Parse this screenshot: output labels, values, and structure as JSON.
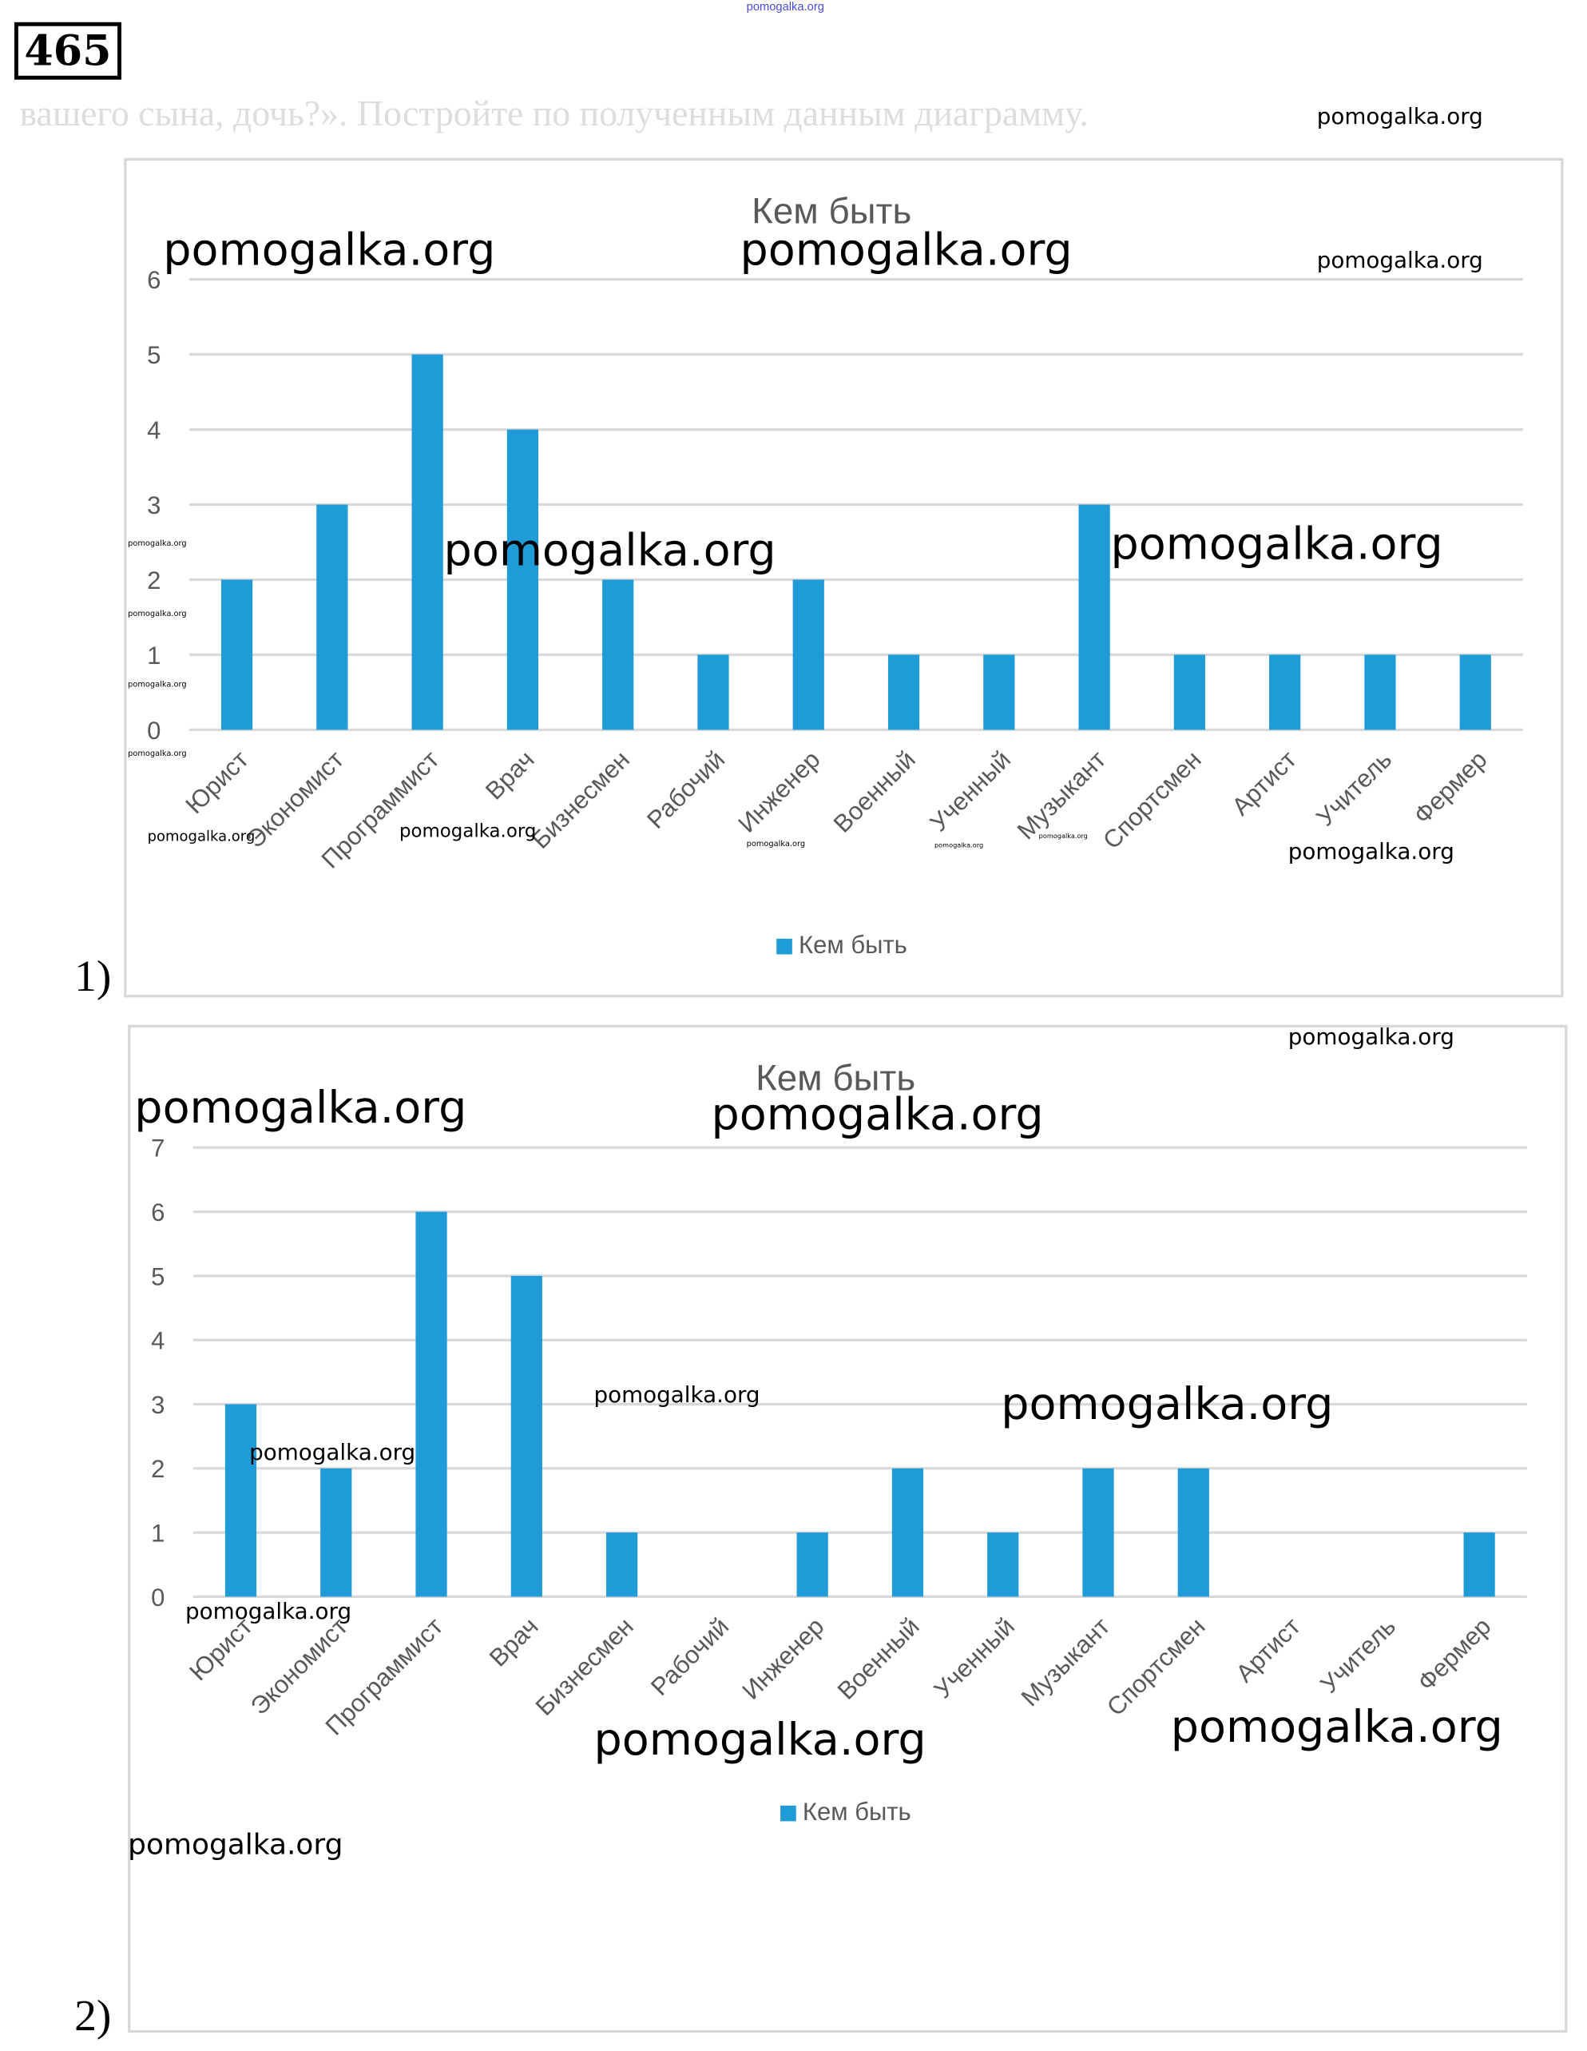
{
  "problem_number": "465",
  "site_link": "pomogalka.org",
  "faded_prompt": "вашего сына, дочь?». Постройте по полученным данным диаграмму.",
  "watermark": "pomogalka.org",
  "part_labels": [
    "1)",
    "2)"
  ],
  "colors": {
    "bar": "#1f9bd7",
    "grid": "#d9d9d9",
    "text": "#595959"
  },
  "chart_data": [
    {
      "type": "bar",
      "title": "Кем быть",
      "legend": "Кем быть",
      "legend_position": "bottom",
      "categories": [
        "Юрист",
        "Экономист",
        "Программист",
        "Врач",
        "Бизнесмен",
        "Рабочий",
        "Инженер",
        "Военный",
        "Ученный",
        "Музыкант",
        "Спортсмен",
        "Артист",
        "Учитель",
        "Фермер"
      ],
      "values": [
        2,
        3,
        5,
        4,
        2,
        1,
        2,
        1,
        1,
        3,
        1,
        1,
        1,
        1
      ],
      "yticks": [
        0,
        1,
        2,
        3,
        4,
        5,
        6
      ],
      "ylim": [
        0,
        6
      ],
      "grid": true
    },
    {
      "type": "bar",
      "title": "Кем быть",
      "legend": "Кем быть",
      "legend_position": "bottom",
      "categories": [
        "Юрист",
        "Экономист",
        "Программист",
        "Врач",
        "Бизнесмен",
        "Рабочий",
        "Инженер",
        "Военный",
        "Ученный",
        "Музыкант",
        "Спортсмен",
        "Артист",
        "Учитель",
        "Фермер"
      ],
      "values": [
        3,
        2,
        6,
        5,
        1,
        0,
        1,
        2,
        1,
        2,
        2,
        0,
        0,
        1
      ],
      "yticks": [
        0,
        1,
        2,
        3,
        4,
        5,
        6,
        7
      ],
      "ylim": [
        0,
        7
      ],
      "grid": true
    }
  ]
}
